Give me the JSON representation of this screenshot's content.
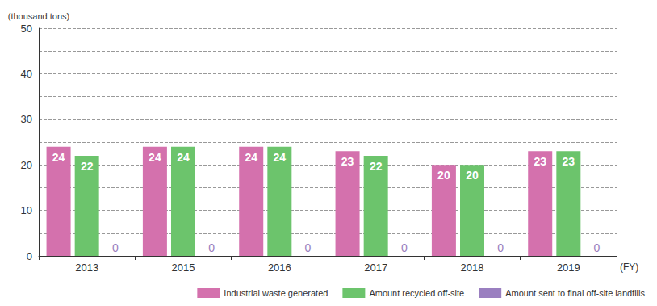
{
  "chart_data": {
    "type": "bar",
    "y_label": "(thousand tons)",
    "x_label": "(FY)",
    "categories": [
      "2013",
      "2015",
      "2016",
      "2017",
      "2018",
      "2019"
    ],
    "series": [
      {
        "name": "Industrial waste generated",
        "color": "#d471ad",
        "values": [
          24,
          24,
          24,
          23,
          20,
          23
        ]
      },
      {
        "name": "Amount recycled off-site",
        "color": "#6cc46c",
        "values": [
          22,
          24,
          24,
          22,
          20,
          23
        ]
      },
      {
        "name": "Amount sent to final off-site landfills",
        "color": "#9a7fc0",
        "values": [
          0,
          0,
          0,
          0,
          0,
          0
        ]
      }
    ],
    "ylim": [
      0,
      50
    ],
    "yticks": [
      0,
      10,
      20,
      30,
      40,
      50
    ],
    "grid": true,
    "data_labels": true,
    "legend": "bottom-right"
  }
}
